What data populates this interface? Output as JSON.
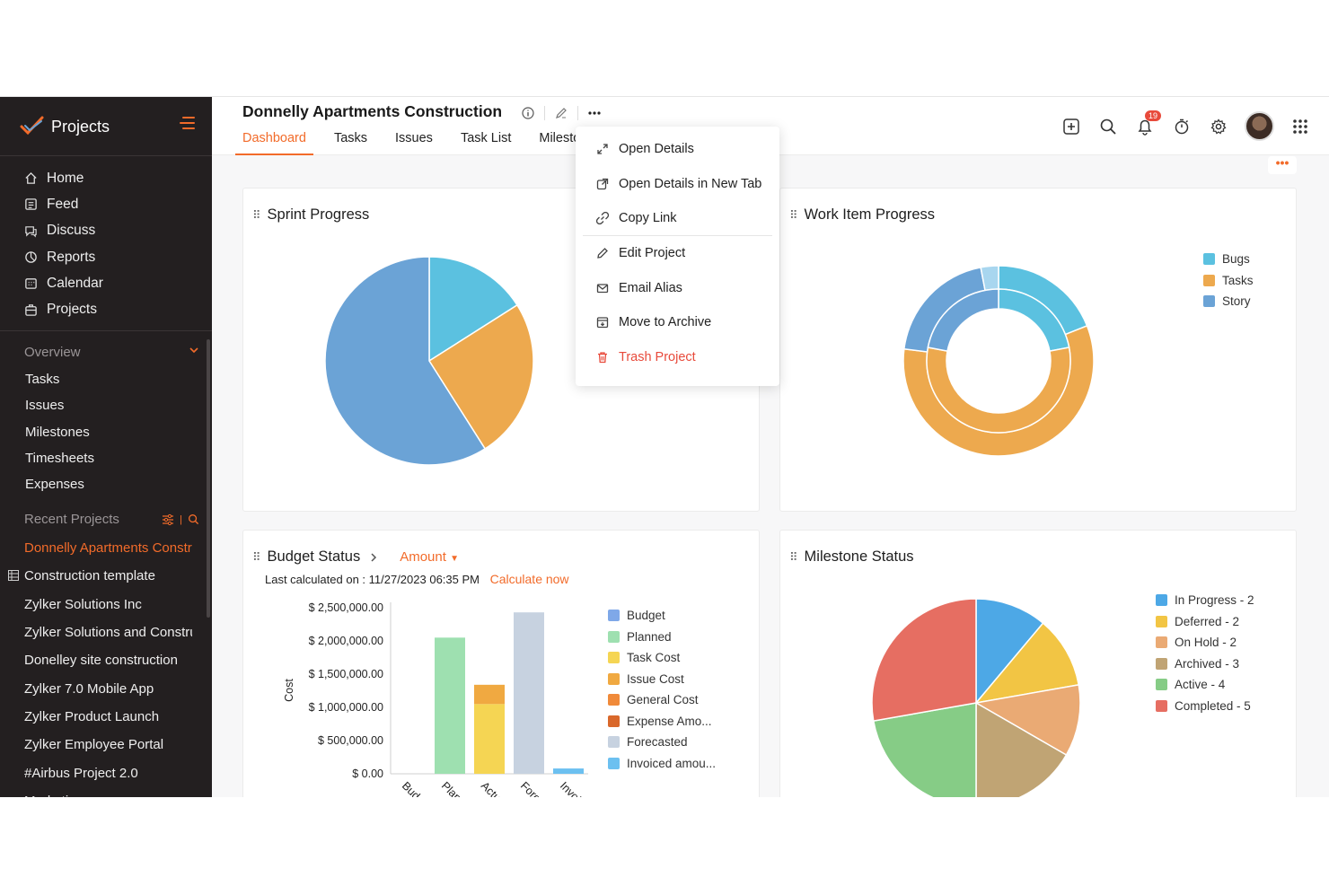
{
  "sidebar": {
    "title": "Projects",
    "nav": [
      {
        "label": "Home",
        "icon": "home-icon"
      },
      {
        "label": "Feed",
        "icon": "feed-icon"
      },
      {
        "label": "Discuss",
        "icon": "discuss-icon"
      },
      {
        "label": "Reports",
        "icon": "reports-icon"
      },
      {
        "label": "Calendar",
        "icon": "calendar-icon"
      },
      {
        "label": "Projects",
        "icon": "projects-icon"
      }
    ],
    "overview_label": "Overview",
    "overview_items": [
      "Tasks",
      "Issues",
      "Milestones",
      "Timesheets",
      "Expenses"
    ],
    "recent_label": "Recent Projects",
    "recent_items": [
      "Donnelly Apartments Construction",
      "Construction template",
      "Zylker Solutions Inc",
      "Zylker Solutions and Construction",
      "Donelley site construction",
      "Zylker 7.0 Mobile App",
      "Zylker Product Launch",
      "Zylker Employee Portal",
      "#Airbus Project 2.0",
      "Marketing"
    ]
  },
  "header": {
    "project_title": "Donnelly Apartments Construction",
    "tabs": [
      "Dashboard",
      "Tasks",
      "Issues",
      "Task List",
      "Milestones"
    ],
    "notification_count": "19",
    "more_label": "•••"
  },
  "dropdown": {
    "items": [
      {
        "label": "Open Details",
        "icon": "expand-icon"
      },
      {
        "label": "Open Details in New Tab",
        "icon": "new-tab-icon"
      },
      {
        "label": "Copy Link",
        "icon": "link-icon"
      },
      {
        "label": "Edit Project",
        "icon": "pencil-icon"
      },
      {
        "label": "Email Alias",
        "icon": "mail-icon"
      },
      {
        "label": "Move to Archive",
        "icon": "archive-icon"
      },
      {
        "label": "Trash Project",
        "icon": "trash-icon"
      }
    ]
  },
  "colors": {
    "accent": "#f26b2a",
    "sidebar_bg": "#231f20",
    "danger": "#e84a3b"
  },
  "cards": {
    "sprint_title": "Sprint Progress",
    "work_title": "Work Item Progress",
    "budget_title": "Budget Status",
    "budget_amount_label": "Amount",
    "budget_last_calc": "Last calculated on : 11/27/2023 06:35 PM",
    "budget_calc_now": "Calculate now",
    "milestone_title": "Milestone Status"
  },
  "chart_data": [
    {
      "type": "pie",
      "title": "Sprint Progress",
      "slices": [
        {
          "value": 16,
          "color": "#5bc1e0"
        },
        {
          "value": 25,
          "color": "#eda94e"
        },
        {
          "value": 59,
          "color": "#6ba3d6"
        }
      ]
    },
    {
      "type": "pie",
      "title": "Work Item Progress",
      "legend": [
        "Bugs",
        "Tasks",
        "Story"
      ],
      "legend_colors": [
        "#5bc1e0",
        "#eda94e",
        "#6ba3d6"
      ],
      "rings": [
        {
          "name": "outer",
          "slices": [
            {
              "label": "Bugs",
              "value": 19,
              "color": "#5bc1e0"
            },
            {
              "label": "Tasks",
              "value": 58,
              "color": "#eda94e"
            },
            {
              "label": "Story",
              "value": 20,
              "color": "#6ba3d6"
            },
            {
              "label": "",
              "value": 3,
              "color": "#a8d6ef"
            }
          ]
        },
        {
          "name": "inner",
          "slices": [
            {
              "label": "Bugs",
              "value": 22,
              "color": "#5bc1e0"
            },
            {
              "label": "Tasks",
              "value": 56,
              "color": "#eda94e"
            },
            {
              "label": "Story",
              "value": 22,
              "color": "#6ba3d6"
            }
          ]
        }
      ]
    },
    {
      "type": "bar",
      "title": "Budget Status",
      "ylabel": "Cost",
      "yticks": [
        "$ 2,500,000.00",
        "$ 2,000,000.00",
        "$ 1,500,000.00",
        "$ 1,000,000.00",
        "$ 500,000.00",
        "$ 0.00"
      ],
      "ylim": [
        0,
        2500000
      ],
      "categories": [
        "Budget",
        "Planned",
        "Actual",
        "Forecasted",
        "Invoiced"
      ],
      "category_labels": [
        "Budg",
        "Plan",
        "Actu",
        "Fore",
        "Invoi"
      ],
      "series": [
        {
          "name": "Budget",
          "color": "#7fa8e8",
          "values": [
            0,
            0,
            0,
            0,
            0
          ]
        },
        {
          "name": "Planned",
          "color": "#9ee0b0",
          "values": [
            0,
            2050000,
            0,
            0,
            0
          ]
        },
        {
          "name": "Task Cost",
          "color": "#f5d553",
          "values": [
            0,
            0,
            1050000,
            0,
            0
          ]
        },
        {
          "name": "Issue Cost",
          "color": "#f0a941",
          "values": [
            0,
            0,
            290000,
            0,
            0
          ]
        },
        {
          "name": "General Cost",
          "color": "#f08a3a",
          "values": [
            0,
            0,
            0,
            0,
            0
          ]
        },
        {
          "name": "Expense Amo...",
          "color": "#d9682b",
          "values": [
            0,
            0,
            0,
            0,
            0
          ]
        },
        {
          "name": "Forecasted",
          "color": "#c7d2e0",
          "values": [
            0,
            0,
            0,
            2430000,
            0
          ]
        },
        {
          "name": "Invoiced amou...",
          "color": "#6cc0f0",
          "values": [
            0,
            0,
            0,
            0,
            80000
          ]
        }
      ]
    },
    {
      "type": "pie",
      "title": "Milestone Status",
      "slices": [
        {
          "label": "In Progress - 2",
          "value": 2,
          "color": "#4da8e6"
        },
        {
          "label": "Deferred - 2",
          "value": 2,
          "color": "#f2c544"
        },
        {
          "label": "On Hold - 2",
          "value": 2,
          "color": "#eaaa74"
        },
        {
          "label": "Archived - 3",
          "value": 3,
          "color": "#c0a474"
        },
        {
          "label": "Active - 4",
          "value": 4,
          "color": "#86cc86"
        },
        {
          "label": "Completed - 5",
          "value": 5,
          "color": "#e66e62"
        }
      ]
    }
  ]
}
